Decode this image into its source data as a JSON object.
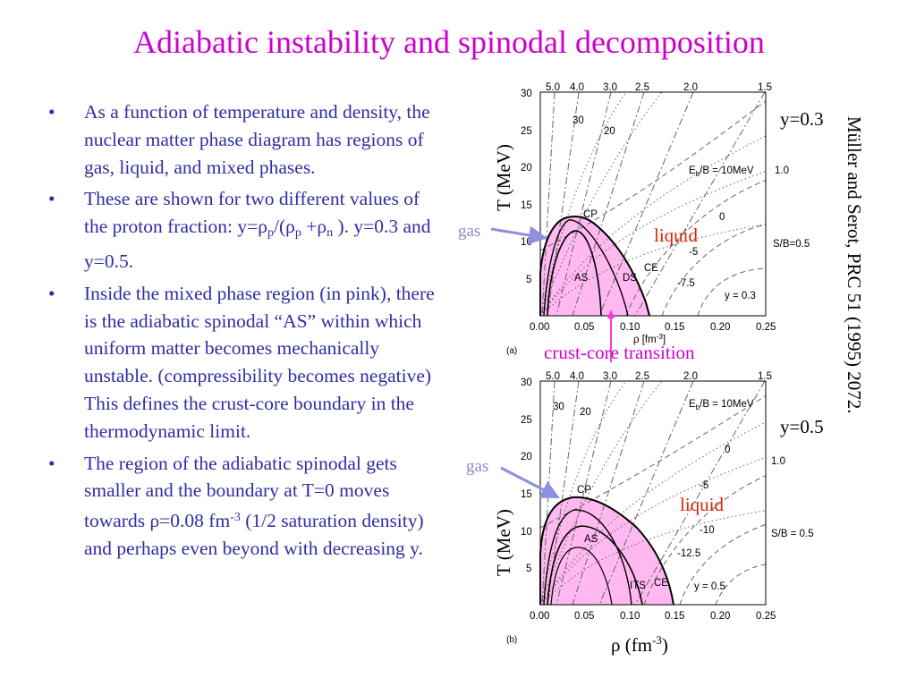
{
  "title": "Adiabatic instability and spinodal decomposition",
  "bullets": [
    {
      "text": "As a function of temperature and density, the nuclear matter phase diagram has regions of gas, liquid, and mixed phases."
    },
    {
      "pre": "These are shown for two different values of the proton fraction: y=ρ",
      "s1": "p",
      "mid1": "/(ρ",
      "s2": "p",
      "mid2": " +ρ",
      "s3": "n",
      "post": " ). y=0.3 and y=0.5."
    },
    {
      "text": "Inside the mixed phase region (in pink), there is the adiabatic spinodal “AS” within which uniform matter becomes mechanically unstable. (compressibility becomes negative) This defines the crust-core boundary in the thermodynamic limit."
    },
    {
      "pre": "The region of the adiabatic spinodal gets smaller and the boundary at T=0 moves towards ρ=0.08 fm",
      "sup": "-3",
      "post": " (1/2 saturation density) and perhaps even beyond with decreasing y."
    }
  ],
  "bullet_symbol": "•",
  "citation": "Müller and Serot, PRC  51 (1995) 2072.",
  "annotations": {
    "y_top": "y=0.3",
    "y_bottom": "y=0.5",
    "gas": "gas",
    "liquid": "liquid",
    "crust_core": "crust-core transition",
    "T_label": "T (MeV)",
    "rho_pre": "ρ (fm",
    "rho_sup": "-3",
    "rho_post": ")"
  },
  "colors": {
    "title": "#cc00cc",
    "bullet_text": "#2e2ea4",
    "liquid": "#dd2200",
    "annotation": "#cc00cc",
    "gas": "#8888cc",
    "arrow": "#8f8fe0",
    "pink": "#ffb8f0",
    "crust": "#ff33dd"
  },
  "panel_a": {
    "panel_label": "(a)",
    "x_ticks": [
      "0.00",
      "0.05",
      "0.10",
      "0.15",
      "0.20",
      "0.25"
    ],
    "y_ticks": [
      "5",
      "10",
      "15",
      "20",
      "25",
      "30"
    ],
    "x_axis_label": "ρ [fm",
    "x_axis_sup": "-3",
    "x_axis_close": "]",
    "top_labels": [
      "5.0",
      "4.0",
      "3.0",
      "2.5",
      "2.0",
      "1.5"
    ],
    "entropy_labels": [
      "1.0",
      "S/B=0.5"
    ],
    "energy_labels": [
      "E",
      "b",
      "/B = 10MeV",
      "0",
      "-5",
      "-7.5"
    ],
    "region_labels": [
      "CP",
      "AS",
      "DS",
      "CE"
    ],
    "inner_labels": [
      "30",
      "20"
    ],
    "y_label": "y = 0.3"
  },
  "panel_b": {
    "panel_label": "(b)",
    "x_ticks": [
      "0.00",
      "0.05",
      "0.10",
      "0.15",
      "0.20",
      "0.25"
    ],
    "y_ticks": [
      "5",
      "10",
      "15",
      "20",
      "25",
      "30"
    ],
    "top_labels": [
      "5.0",
      "4.0",
      "3.0",
      "2.5",
      "2.0",
      "1.5"
    ],
    "entropy_labels": [
      "1.0",
      "S/B = 0.5"
    ],
    "energy_labels": [
      "E",
      "b",
      "/B = 10MeV",
      "0",
      "-5",
      "-10",
      "-12.5"
    ],
    "region_labels": [
      "CP",
      "AS",
      "ITS",
      "CE"
    ],
    "inner_labels": [
      "30",
      "20"
    ],
    "y_label": "y = 0.5"
  }
}
